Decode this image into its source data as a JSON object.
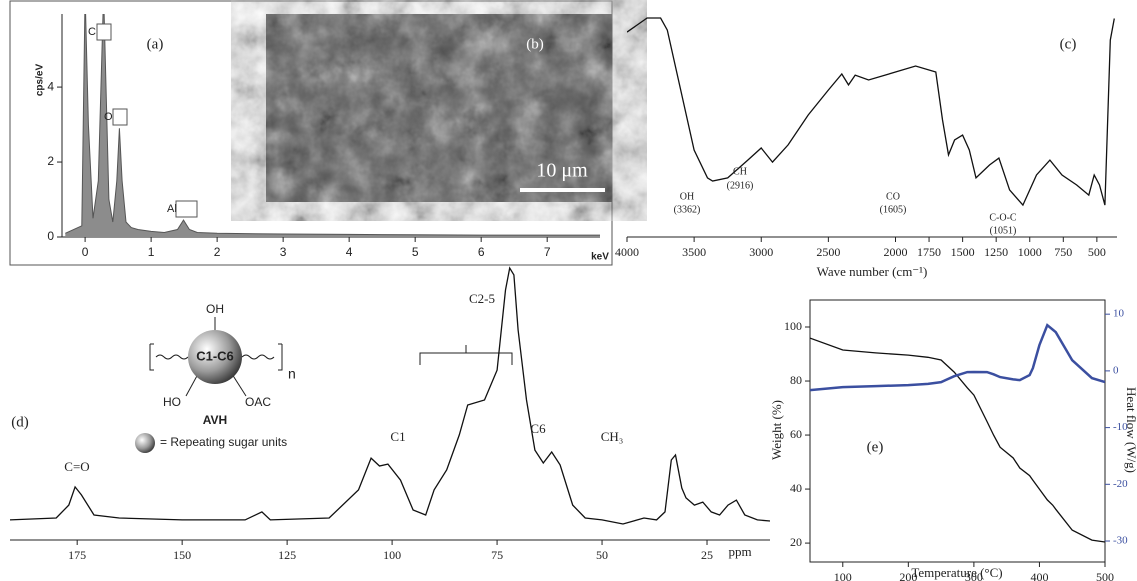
{
  "chart_data": [
    {
      "type": "area",
      "panel_label": "(a)",
      "xlabel": "keV",
      "ylabel": "cps/eV",
      "color": "#8c8c8c",
      "x": [
        -0.3,
        -0.05,
        0,
        0.05,
        0.12,
        0.2,
        0.28,
        0.36,
        0.42,
        0.48,
        0.52,
        0.56,
        0.62,
        0.7,
        0.8,
        1.0,
        1.2,
        1.4,
        1.49,
        1.58,
        1.7,
        2,
        3,
        4,
        5,
        6,
        7,
        7.8
      ],
      "series": [
        {
          "values": [
            0.1,
            0.3,
            6.5,
            3,
            0.5,
            1.5,
            6.5,
            1.0,
            0.4,
            1.5,
            2.9,
            1.5,
            0.4,
            0.25,
            0.2,
            0.15,
            0.12,
            0.2,
            0.45,
            0.2,
            0.12,
            0.1,
            0.08,
            0.07,
            0.06,
            0.05,
            0.05,
            0.05
          ],
          "color": "#555555"
        }
      ],
      "annotations": [
        "C",
        "O",
        "Al"
      ],
      "xlim": [
        -0.35,
        7.8
      ],
      "xticks": [
        0,
        1,
        2,
        3,
        4,
        5,
        6,
        7
      ],
      "ylim": [
        0,
        5.95
      ],
      "yticks": [
        0,
        2,
        4
      ]
    },
    {
      "type": "image",
      "panel_label": "(b)",
      "scale_bar": "10 μm"
    },
    {
      "type": "line",
      "panel_label": "(c)",
      "xlabel": "Wave number (cm⁻¹)",
      "x": [
        4000,
        3850,
        3750,
        3700,
        3600,
        3500,
        3400,
        3362,
        3250,
        3100,
        3000,
        2916,
        2800,
        2650,
        2500,
        2400,
        2350,
        2300,
        2200,
        2000,
        1850,
        1700,
        1650,
        1605,
        1560,
        1500,
        1450,
        1400,
        1300,
        1230,
        1150,
        1051,
        950,
        850,
        760,
        650,
        560,
        520,
        480,
        440,
        400,
        370
      ],
      "series": [
        {
          "values": [
            91.9,
            98.2,
            98.2,
            92.8,
            65.9,
            39.0,
            26.5,
            25.1,
            26.5,
            34.5,
            39.9,
            33.6,
            41.3,
            54.7,
            65.9,
            73.1,
            68.2,
            72.6,
            70.4,
            74.0,
            76.7,
            74.0,
            52.5,
            36.8,
            43.5,
            45.7,
            39.0,
            26.5,
            32.3,
            35.4,
            21.1,
            14.3,
            27.8,
            34.5,
            27.8,
            23.3,
            18.8,
            27.8,
            23.3,
            14.3,
            88.3,
            98
          ],
          "color": "#111111"
        }
      ],
      "annotations": [
        "OH",
        "(3362)",
        "CH",
        "(2916)",
        "CO",
        "(1605)",
        "C-O-C",
        "(1051)"
      ],
      "xlim": [
        4000,
        350
      ],
      "xticks": [
        4000,
        3500,
        3000,
        2500,
        2000,
        1750,
        1500,
        1250,
        1000,
        750,
        500
      ],
      "ylim": [
        0,
        100
      ]
    },
    {
      "type": "line",
      "panel_label": "(d)",
      "xlabel": "ppm",
      "x": [
        191,
        180,
        177,
        175.5,
        174,
        171,
        165,
        150,
        135,
        131,
        129,
        115,
        108,
        105,
        103,
        101,
        98,
        95,
        92,
        90,
        87,
        84,
        82,
        78,
        75,
        73,
        72,
        71,
        70,
        68,
        66,
        64,
        62,
        60,
        57,
        54,
        50,
        45,
        40,
        37,
        35,
        33.5,
        32.5,
        31,
        30,
        28,
        26,
        24,
        22,
        20,
        18,
        16,
        13,
        10
      ],
      "series": [
        {
          "values": [
            7.3,
            8.0,
            12.7,
            19.3,
            16.4,
            9.1,
            8.0,
            7.3,
            7.3,
            10.2,
            7.3,
            8.0,
            18.2,
            29.8,
            26.9,
            27.6,
            21.8,
            10.9,
            9.1,
            18.2,
            25.5,
            38.2,
            49.1,
            50.9,
            61.8,
            90.9,
            98.9,
            96.4,
            76.4,
            50.9,
            32.7,
            28.0,
            32.0,
            27.3,
            12.7,
            8.0,
            7.3,
            5.8,
            8.0,
            7.3,
            10.2,
            29.1,
            30.9,
            18.9,
            15.3,
            12.7,
            13.8,
            10.2,
            9.1,
            12.7,
            14.5,
            9.1,
            7.3,
            6.9
          ],
          "color": "#111111"
        }
      ],
      "annotations": [
        "C=O",
        "C1",
        "C2-5",
        "C6",
        "CH₃"
      ],
      "structure": {
        "top": "OH",
        "core": "C1-C6",
        "repeat": "n",
        "left": "HO",
        "right": "OAC",
        "name": "AVH",
        "legend": "= Repeating sugar units"
      },
      "xlim": [
        191,
        10
      ],
      "xticks": [
        175,
        150,
        125,
        100,
        75,
        50,
        25
      ],
      "ylim": [
        0,
        100
      ]
    },
    {
      "type": "line",
      "panel_label": "(e)",
      "xlabel": "Temperature (°C)",
      "ylabel": "Weight (%)",
      "y2label": "Heat flow (W/g)",
      "x": [
        50,
        100,
        150,
        200,
        230,
        250,
        270,
        290,
        300,
        320,
        330,
        340,
        360,
        370,
        385,
        390,
        400,
        412,
        420,
        425,
        450,
        480,
        500
      ],
      "series": [
        {
          "name": "Weight",
          "color": "#111111",
          "values": [
            95.9,
            91.5,
            90.4,
            89.6,
            88.8,
            87.8,
            83.3,
            77.5,
            74.8,
            65,
            60,
            55.5,
            51.5,
            47.8,
            45,
            43.3,
            40,
            36,
            34.1,
            32.5,
            24.8,
            21.1,
            20.4
          ]
        },
        {
          "name": "Heat flow",
          "color": "#3b4fa0",
          "axis": "y2",
          "values": [
            -3.39,
            -2.86,
            -2.69,
            -2.51,
            -2.3,
            -1.98,
            -0.93,
            -0.22,
            -0.2,
            -0.22,
            -0.6,
            -1.1,
            -1.5,
            -1.63,
            -0.75,
            0.5,
            4.54,
            8.06,
            7.3,
            6.83,
            1.89,
            -1.28,
            -1.98
          ]
        }
      ],
      "xlim": [
        50,
        500
      ],
      "xticks": [
        100,
        200,
        300,
        400,
        500
      ],
      "ylim": [
        13,
        110
      ],
      "yticks": [
        20,
        40,
        60,
        80,
        100
      ],
      "y2lim": [
        -33.7,
        12.5
      ],
      "y2ticks": [
        -30,
        -20,
        -10,
        0,
        10
      ]
    }
  ]
}
